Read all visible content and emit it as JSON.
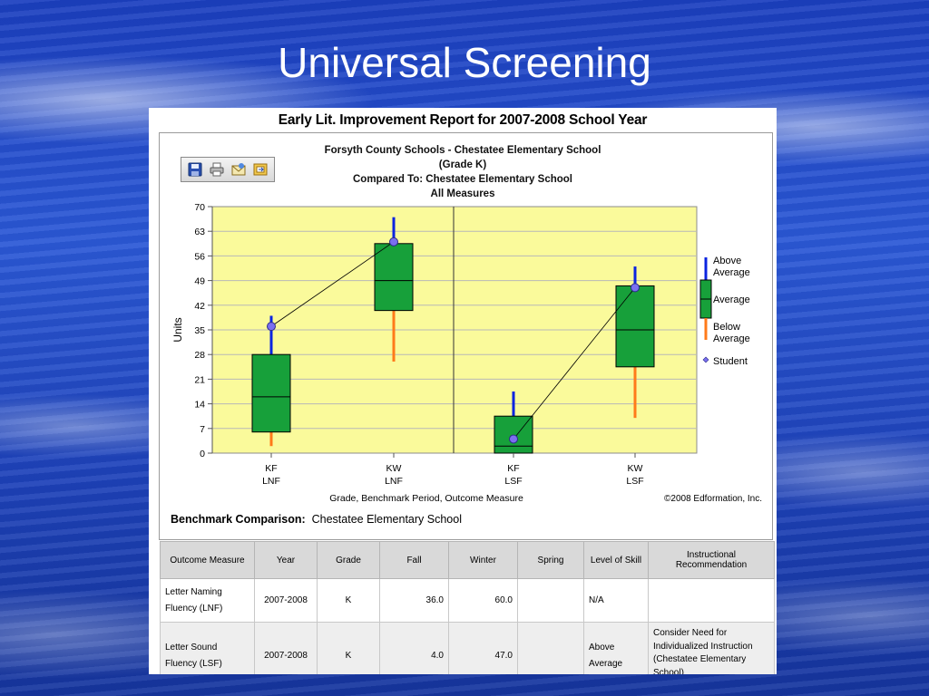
{
  "slide": {
    "title": "Universal Screening"
  },
  "report": {
    "title": "Early Lit. Improvement Report for 2007-2008 School Year",
    "subtitle_lines": [
      "Forsyth County Schools - Chestatee Elementary School",
      "(Grade K)",
      "Compared To: Chestatee Elementary School",
      "All Measures"
    ],
    "toolbar": {
      "buttons": [
        {
          "name": "save-icon",
          "tooltip": "Save"
        },
        {
          "name": "print-icon",
          "tooltip": "Print"
        },
        {
          "name": "email-icon",
          "tooltip": "Email"
        },
        {
          "name": "export-icon",
          "tooltip": "Export"
        }
      ]
    },
    "copyright": "©2008 Edformation, Inc.",
    "benchmark": {
      "label": "Benchmark Comparison:",
      "value": "Chestatee Elementary School"
    }
  },
  "colors": {
    "plot_bg": "#fafa9b",
    "box_fill": "#17a03a",
    "above_avg": "#0b24e0",
    "below_avg": "#ff7a1a",
    "student": "#7a6ff0"
  },
  "chart_data": {
    "type": "box",
    "ylabel": "Units",
    "xlabel": "Grade, Benchmark Period, Outcome Measure",
    "ylim": [
      0,
      70
    ],
    "yticks": [
      0,
      7,
      14,
      21,
      28,
      35,
      42,
      49,
      56,
      63,
      70
    ],
    "grid": true,
    "categories": [
      {
        "period": "KF",
        "measure": "LNF",
        "whisker_low": 2,
        "q1": 6,
        "median": 16,
        "q3": 28,
        "whisker_high": 39,
        "student": 36
      },
      {
        "period": "KW",
        "measure": "LNF",
        "whisker_low": 26,
        "q1": 40.5,
        "median": 49,
        "q3": 59.5,
        "whisker_high": 67,
        "student": 60
      },
      {
        "period": "KF",
        "measure": "LSF",
        "whisker_low": 0,
        "q1": 0,
        "median": 2,
        "q3": 10.5,
        "whisker_high": 17.5,
        "student": 4
      },
      {
        "period": "KW",
        "measure": "LSF",
        "whisker_low": 10,
        "q1": 24.5,
        "median": 35,
        "q3": 47.5,
        "whisker_high": 53,
        "student": 47
      }
    ],
    "student_series": [
      [
        0,
        1
      ],
      [
        2,
        3
      ]
    ],
    "divider_after_category": 1,
    "legend": {
      "position": "right",
      "items": [
        "Above Average",
        "Average",
        "Below Average",
        "Student"
      ]
    }
  },
  "table": {
    "headers": [
      "Outcome Measure",
      "Year",
      "Grade",
      "Fall",
      "Winter",
      "Spring",
      "Level of Skill",
      "Instructional Recommendation"
    ],
    "rows": [
      {
        "measure": "Letter Naming Fluency (LNF)",
        "year": "2007-2008",
        "grade": "K",
        "fall": "36.0",
        "winter": "60.0",
        "spring": "",
        "level": "N/A",
        "recommendation": ""
      },
      {
        "measure": "Letter Sound Fluency (LSF)",
        "year": "2007-2008",
        "grade": "K",
        "fall": "4.0",
        "winter": "47.0",
        "spring": "",
        "level": "Above Average",
        "recommendation": "Consider Need for Individualized Instruction (Chestatee Elementary School)"
      }
    ]
  }
}
